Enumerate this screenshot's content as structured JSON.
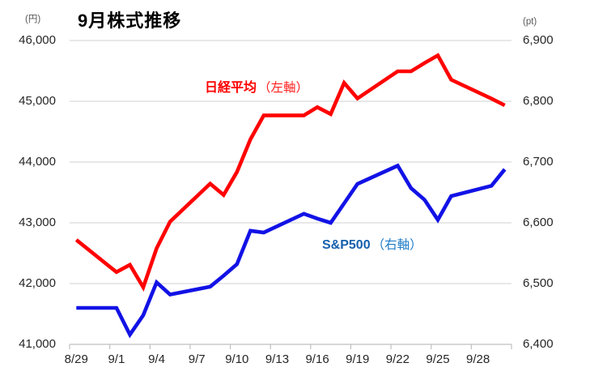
{
  "window": {
    "title": "9月株式推移"
  },
  "chart_data": {
    "type": "line",
    "title": "9月株式推移",
    "grid": true,
    "grid_color": "#d9d9d9",
    "axis_color": "#bfbfbf",
    "background": "#ffffff",
    "left_axis": {
      "unit": "(円)",
      "min": 41000,
      "max": 46000,
      "step": 1000,
      "tick_labels": [
        "46,000",
        "45,000",
        "44,000",
        "43,000",
        "42,000",
        "41,000"
      ]
    },
    "right_axis": {
      "unit": "(pt)",
      "min": 6400,
      "max": 6900,
      "step": 100,
      "tick_labels": [
        "6,900",
        "6,800",
        "6,700",
        "6,600",
        "6,500",
        "6,400"
      ]
    },
    "x_axis": {
      "start_date": "8/29",
      "end_date": "9/30",
      "days_shown": 33,
      "tick_labels": [
        "8/29",
        "9/1",
        "9/4",
        "9/7",
        "9/10",
        "9/13",
        "9/16",
        "9/19",
        "9/22",
        "9/25",
        "9/28"
      ],
      "label_every_days": 3
    },
    "series": [
      {
        "name": "日経平均",
        "label_name": "日経平均",
        "label_axis": "（左軸）",
        "axis": "left",
        "color": "#ff0000",
        "points": [
          {
            "date": "8/29",
            "day": 0,
            "value": 42718
          },
          {
            "date": "9/1",
            "day": 3,
            "value": 42189
          },
          {
            "date": "9/2",
            "day": 4,
            "value": 42310
          },
          {
            "date": "9/3",
            "day": 5,
            "value": 41939
          },
          {
            "date": "9/4",
            "day": 6,
            "value": 42580
          },
          {
            "date": "9/5",
            "day": 7,
            "value": 43019
          },
          {
            "date": "9/8",
            "day": 10,
            "value": 43644
          },
          {
            "date": "9/9",
            "day": 11,
            "value": 43459
          },
          {
            "date": "9/10",
            "day": 12,
            "value": 43838
          },
          {
            "date": "9/11",
            "day": 13,
            "value": 44373
          },
          {
            "date": "9/12",
            "day": 14,
            "value": 44768
          },
          {
            "date": "9/15",
            "day": 17,
            "value": 44768
          },
          {
            "date": "9/16",
            "day": 18,
            "value": 44902
          },
          {
            "date": "9/17",
            "day": 19,
            "value": 44790
          },
          {
            "date": "9/18",
            "day": 20,
            "value": 45303
          },
          {
            "date": "9/19",
            "day": 21,
            "value": 45046
          },
          {
            "date": "9/22",
            "day": 24,
            "value": 45494
          },
          {
            "date": "9/23",
            "day": 25,
            "value": 45494
          },
          {
            "date": "9/24",
            "day": 26,
            "value": 45630
          },
          {
            "date": "9/25",
            "day": 27,
            "value": 45755
          },
          {
            "date": "9/26",
            "day": 28,
            "value": 45355
          },
          {
            "date": "9/29",
            "day": 31,
            "value": 45044
          },
          {
            "date": "9/30",
            "day": 32,
            "value": 44933
          }
        ]
      },
      {
        "name": "S&P500",
        "label_name": "S&P500",
        "label_axis": "（右軸）",
        "axis": "right",
        "color": "#1212e6",
        "points": [
          {
            "date": "8/29",
            "day": 0,
            "value": 6460
          },
          {
            "date": "9/1",
            "day": 3,
            "value": 6460
          },
          {
            "date": "9/2",
            "day": 4,
            "value": 6416
          },
          {
            "date": "9/3",
            "day": 5,
            "value": 6448
          },
          {
            "date": "9/4",
            "day": 6,
            "value": 6502
          },
          {
            "date": "9/5",
            "day": 7,
            "value": 6482
          },
          {
            "date": "9/8",
            "day": 10,
            "value": 6495
          },
          {
            "date": "9/9",
            "day": 11,
            "value": 6513
          },
          {
            "date": "9/10",
            "day": 12,
            "value": 6532
          },
          {
            "date": "9/11",
            "day": 13,
            "value": 6587
          },
          {
            "date": "9/12",
            "day": 14,
            "value": 6584
          },
          {
            "date": "9/15",
            "day": 17,
            "value": 6615
          },
          {
            "date": "9/16",
            "day": 18,
            "value": 6607
          },
          {
            "date": "9/17",
            "day": 19,
            "value": 6600
          },
          {
            "date": "9/18",
            "day": 20,
            "value": 6632
          },
          {
            "date": "9/19",
            "day": 21,
            "value": 6664
          },
          {
            "date": "9/22",
            "day": 24,
            "value": 6694
          },
          {
            "date": "9/23",
            "day": 25,
            "value": 6657
          },
          {
            "date": "9/24",
            "day": 26,
            "value": 6638
          },
          {
            "date": "9/25",
            "day": 27,
            "value": 6605
          },
          {
            "date": "9/26",
            "day": 28,
            "value": 6644
          },
          {
            "date": "9/29",
            "day": 31,
            "value": 6661
          },
          {
            "date": "9/30",
            "day": 32,
            "value": 6688
          }
        ]
      }
    ]
  }
}
